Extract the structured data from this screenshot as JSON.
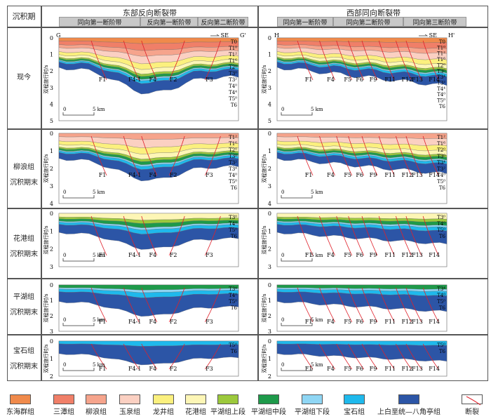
{
  "header": {
    "period_label": "沉积期",
    "east_zone": {
      "title": "东部反向断裂带",
      "sub_belts": [
        "同向第一断阶带",
        "反向第一断阶带",
        "反向第二断阶带"
      ]
    },
    "west_zone": {
      "title": "西部同向断裂带",
      "sub_belts": [
        "同向第一断阶带",
        "同向第二断阶带",
        "同向第三断阶带"
      ]
    }
  },
  "profiles": {
    "east": {
      "start": "G",
      "end": "G'",
      "direction": "SE"
    },
    "west": {
      "start": "H",
      "end": "H'",
      "direction": "SE"
    }
  },
  "y_axis_label": "双程旅行时/s",
  "scale_bar": {
    "zero": "0",
    "end": "5 km"
  },
  "rows": [
    {
      "label_lines": [
        "现今"
      ],
      "ymax": 5,
      "east_faults": [
        "F1",
        "F4-1",
        "F4",
        "F2",
        "F3"
      ],
      "east_horizons": [
        "T0",
        "T1⁰",
        "T1²",
        "T1⁶",
        "T2⁰",
        "T3⁰",
        "T3²",
        "T4⁰",
        "T4⁴",
        "T5⁰",
        "T6"
      ],
      "west_faults": [
        "F1",
        "F4",
        "F5",
        "F6",
        "F9",
        "F11",
        "F12",
        "F13",
        "F14"
      ],
      "west_horizons": [
        "T0",
        "T1⁰",
        "T1²",
        "T1⁶",
        "T2⁰",
        "T3⁰",
        "T3⁴",
        "T3²",
        "T4⁴",
        "T4⁰",
        "T5⁰",
        "T6"
      ]
    },
    {
      "label_lines": [
        "柳浪组",
        "沉积期末"
      ],
      "ymax": 4,
      "east_faults": [
        "F1",
        "F4-1",
        "F4",
        "F2",
        "F3"
      ],
      "east_horizons": [
        "T1²",
        "T1⁶",
        "T2⁰",
        "T3⁰",
        "T3²",
        "T3⁴",
        "T4⁰",
        "T5⁰",
        "T6"
      ],
      "west_faults": [
        "F1",
        "F4",
        "F5",
        "F6",
        "F9",
        "F11",
        "F12",
        "F13",
        "F14"
      ],
      "west_horizons": [
        "T1²",
        "T1⁶",
        "T2⁰",
        "T3⁰",
        "T3⁴",
        "T3²",
        "T4⁰",
        "T5⁰",
        "T6"
      ]
    },
    {
      "label_lines": [
        "花港组",
        "沉积期末"
      ],
      "ymax": 3,
      "east_faults": [
        "F1",
        "F4-1",
        "F4",
        "F2",
        "F3"
      ],
      "east_horizons": [
        "T3⁰",
        "T4⁰",
        "T5⁰",
        "T6"
      ],
      "west_faults": [
        "F1",
        "F4",
        "F5",
        "F6",
        "F9",
        "F11",
        "F12",
        "F13",
        "F14"
      ],
      "west_horizons": [
        "T3⁰",
        "T4⁰",
        "T5⁰",
        "T6"
      ]
    },
    {
      "label_lines": [
        "平湖组",
        "沉积期末"
      ],
      "ymax": 3,
      "east_faults": [
        "F1",
        "F4-1",
        "F4",
        "F2",
        "F3"
      ],
      "east_horizons": [
        "T3⁴",
        "T4⁰",
        "T5⁰",
        "T6"
      ],
      "west_faults": [
        "F1",
        "F4",
        "F5",
        "F6",
        "F9",
        "F11",
        "F12",
        "F13",
        "F14"
      ],
      "west_horizons": [
        "T3⁴",
        "T4⁰",
        "T5⁰",
        "T6"
      ]
    },
    {
      "label_lines": [
        "宝石组",
        "沉积期末"
      ],
      "ymax": 2,
      "east_faults": [
        "F1",
        "F4-1",
        "F4",
        "F2",
        "F3"
      ],
      "east_horizons": [
        "T5⁰",
        "T6"
      ],
      "west_faults": [
        "F1",
        "F4",
        "F5",
        "F6",
        "F9",
        "F11",
        "F12",
        "F13",
        "F14"
      ],
      "west_horizons": [
        "T5⁰",
        "T6"
      ]
    }
  ],
  "legend": [
    {
      "label": "东海群组",
      "color": "#f08a4b"
    },
    {
      "label": "三潭组",
      "color": "#f07f68"
    },
    {
      "label": "柳浪组",
      "color": "#f6a48c"
    },
    {
      "label": "玉泉组",
      "color": "#fbd0c2"
    },
    {
      "label": "龙井组",
      "color": "#fbf07e"
    },
    {
      "label": "花港组",
      "color": "#fdf6b6"
    },
    {
      "label": "平湖组上段",
      "color": "#9cc93c"
    },
    {
      "label": "平湖组中段",
      "color": "#1e9a4a"
    },
    {
      "label": "平湖组下段",
      "color": "#8fd6f4"
    },
    {
      "label": "宝石组",
      "color": "#1fb9ec"
    },
    {
      "label": "上白垩统—八角亭组",
      "color": "#2c55a6"
    },
    {
      "label": "断裂",
      "color": "#e0202a"
    }
  ]
}
